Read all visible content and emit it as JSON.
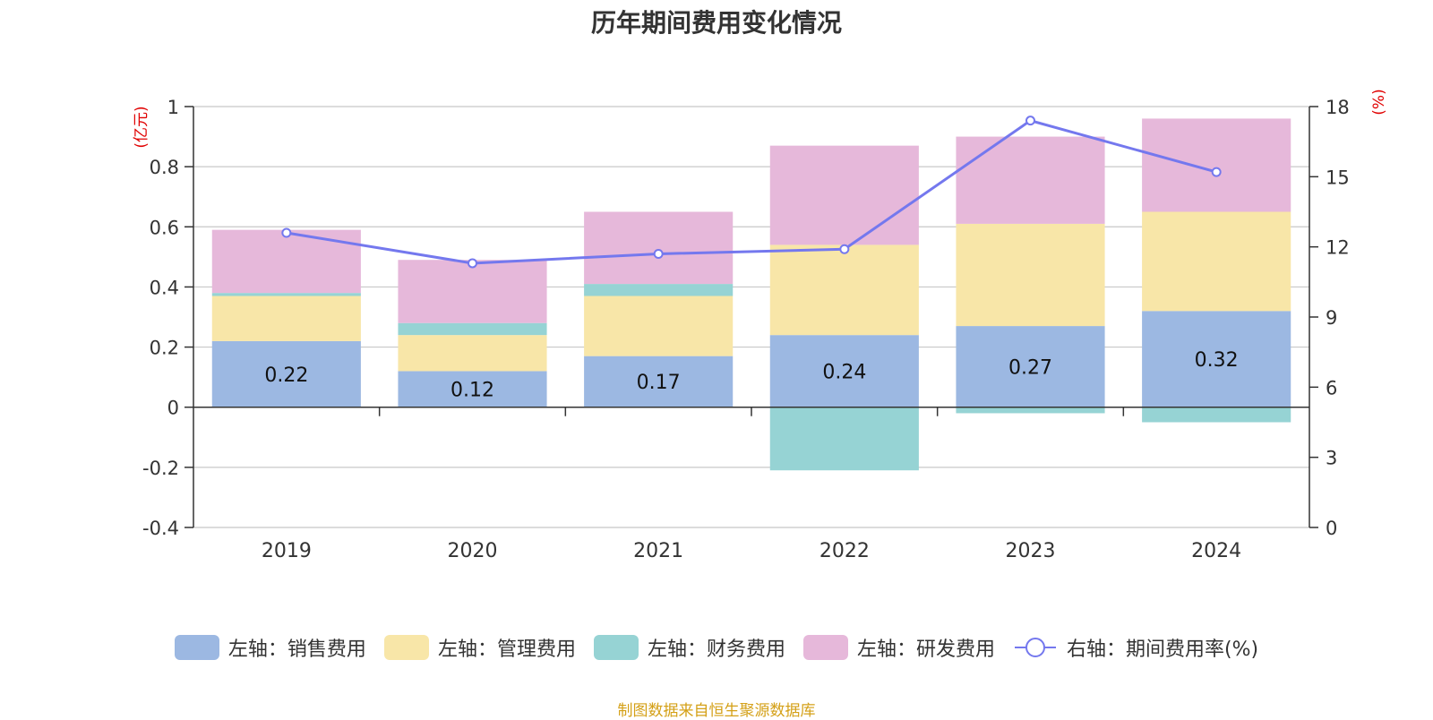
{
  "title": "历年期间费用变化情况",
  "source": "制图数据来自恒生聚源数据库",
  "colors": {
    "sales": "#9cb8e2",
    "admin": "#f8e6a8",
    "finance": "#96d3d4",
    "rd": "#e6b8da",
    "rate": "#7478ee",
    "axis_unit": "#e00000"
  },
  "chart_data": {
    "type": "bar",
    "stacked": true,
    "categories": [
      "2019",
      "2020",
      "2021",
      "2022",
      "2023",
      "2024"
    ],
    "left_axis": {
      "unit": "(亿元)",
      "ylim": [
        -0.4,
        1
      ],
      "ticks": [
        "1",
        "0.8",
        "0.6",
        "0.4",
        "0.2",
        "0",
        "-0.2",
        "-0.4"
      ],
      "tick_values": [
        1,
        0.8,
        0.6,
        0.4,
        0.2,
        0,
        -0.2,
        -0.4
      ]
    },
    "right_axis": {
      "unit": "(%)",
      "ylim": [
        0,
        18
      ],
      "ticks": [
        "18",
        "15",
        "12",
        "9",
        "6",
        "3",
        "0"
      ],
      "tick_values": [
        18,
        15,
        12,
        9,
        6,
        3,
        0
      ]
    },
    "grid": true,
    "legend_position": "bottom",
    "series": [
      {
        "name": "左轴：销售费用",
        "key": "sales",
        "axis": "left",
        "kind": "bar",
        "values": [
          0.22,
          0.12,
          0.17,
          0.24,
          0.27,
          0.32
        ],
        "labels": [
          "0.22",
          "0.12",
          "0.17",
          "0.24",
          "0.27",
          "0.32"
        ]
      },
      {
        "name": "左轴：管理费用",
        "key": "admin",
        "axis": "left",
        "kind": "bar",
        "values": [
          0.15,
          0.12,
          0.2,
          0.3,
          0.34,
          0.33
        ]
      },
      {
        "name": "左轴：财务费用",
        "key": "finance",
        "axis": "left",
        "kind": "bar",
        "values": [
          0.01,
          0.04,
          0.04,
          -0.21,
          -0.02,
          -0.05
        ]
      },
      {
        "name": "左轴：研发费用",
        "key": "rd",
        "axis": "left",
        "kind": "bar",
        "values": [
          0.21,
          0.21,
          0.24,
          0.33,
          0.29,
          0.31
        ]
      },
      {
        "name": "右轴：期间费用率(%)",
        "key": "rate",
        "axis": "right",
        "kind": "line",
        "values": [
          12.6,
          11.3,
          11.7,
          11.9,
          17.4,
          15.2
        ]
      }
    ]
  }
}
